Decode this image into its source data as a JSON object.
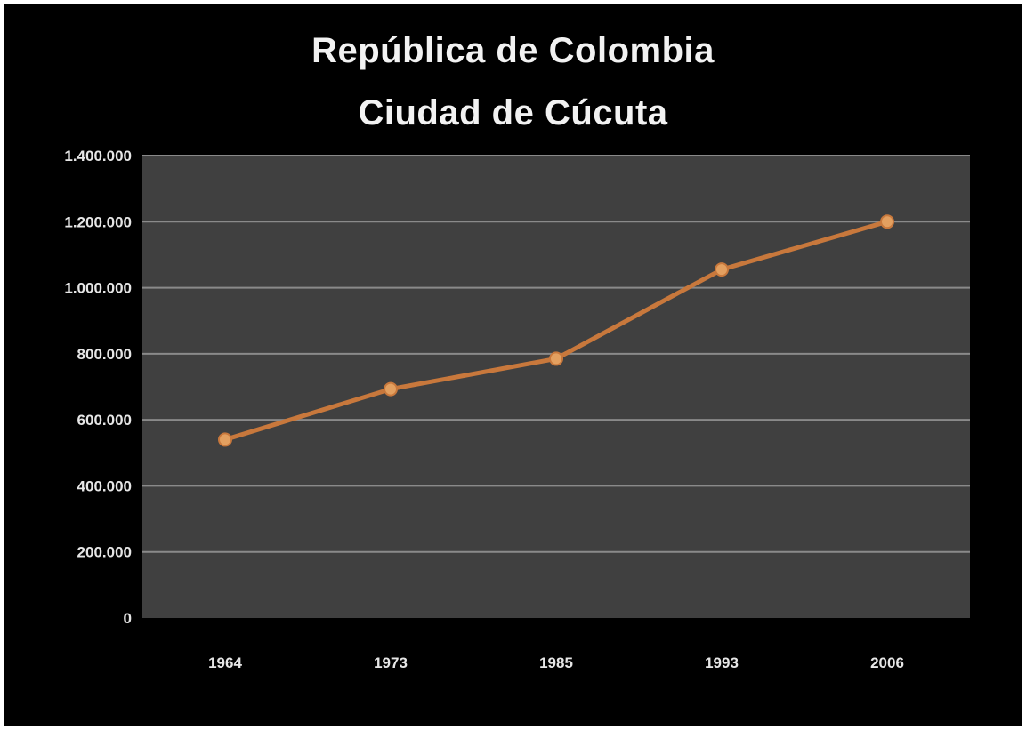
{
  "chart_data": {
    "type": "line",
    "title_lines": [
      "República de Colombia",
      "Ciudad de Cúcuta"
    ],
    "xlabel": "",
    "ylabel": "",
    "categories": [
      "1964",
      "1973",
      "1985",
      "1993",
      "2006"
    ],
    "series": [
      {
        "values": [
          540000,
          693000,
          785000,
          1055000,
          1200000
        ],
        "color": "#c8783c"
      }
    ],
    "ylim": [
      0,
      1400000
    ],
    "yticks": [
      0,
      200000,
      400000,
      600000,
      800000,
      1000000,
      1200000,
      1400000
    ],
    "ytick_labels": [
      "0",
      "200.000",
      "400.000",
      "600.000",
      "800.000",
      "1.000.000",
      "1.200.000",
      "1.400.000"
    ],
    "grid": true,
    "legend": "none",
    "colors": {
      "background": "#000000",
      "plot_area": "#404040",
      "gridline": "#8a8a8a",
      "marker": "#e3a060"
    }
  }
}
